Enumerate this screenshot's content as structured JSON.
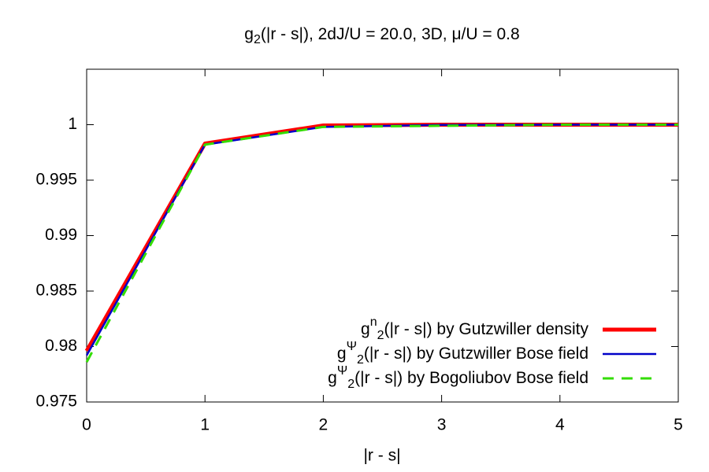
{
  "chart_data": {
    "type": "line",
    "title": [
      "g",
      "2",
      "(|r - s|), 2dJ/U = 20.0, 3D, μ/U = 0.8"
    ],
    "x_label": "|r - s|",
    "x": [
      0,
      1,
      2,
      3,
      4,
      5
    ],
    "series": [
      {
        "name": [
          "g",
          "n",
          "2",
          "(|r - s|) by Gutzwiller density"
        ],
        "color": "#ff0000",
        "line_width": 5,
        "dash": false,
        "values": [
          0.9796,
          0.9983,
          0.99993,
          1.0,
          1.0,
          1.0
        ]
      },
      {
        "name": [
          "g",
          "Ψ",
          "2",
          "(|r - s|) by Gutzwiller Bose field"
        ],
        "color": "#0000c8",
        "line_width": 2.5,
        "dash": false,
        "values": [
          0.9792,
          0.9982,
          0.9998,
          0.99998,
          1.0,
          1.0
        ]
      },
      {
        "name": [
          "g",
          "Ψ",
          "2",
          "(|r - s|) by Bogoliubov Bose field"
        ],
        "color": "#33dd00",
        "line_width": 3,
        "dash": true,
        "values": [
          0.9786,
          0.9982,
          0.9998,
          0.9999,
          1.0,
          1.0
        ]
      }
    ],
    "xlim": [
      0,
      5
    ],
    "xticks": [
      0,
      1,
      2,
      3,
      4,
      5
    ],
    "ylim": [
      0.975,
      1.005
    ],
    "yticks": [
      0.975,
      0.98,
      0.985,
      0.99,
      0.995,
      1
    ],
    "legend": "bottom-right"
  }
}
